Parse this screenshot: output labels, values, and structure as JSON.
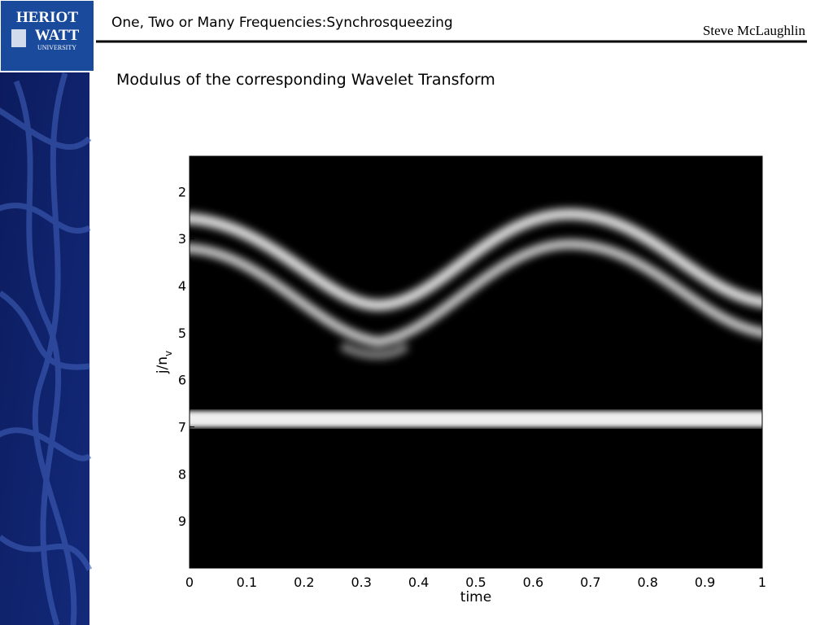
{
  "logo": {
    "line1": "HERIOT",
    "line2": "WATT",
    "line3": "UNIVERSITY"
  },
  "header": {
    "title": "One, Two or Many Frequencies:Synchrosqueezing",
    "author": "Steve McLaughlin"
  },
  "subtitle": "Modulus of the corresponding Wavelet Transform",
  "chart_data": {
    "type": "heatmap",
    "x_label": "time",
    "y_label": {
      "main": "j/n",
      "sub": "v"
    },
    "xlim": [
      0,
      1
    ],
    "xticks": [
      0,
      0.1,
      0.2,
      0.3,
      0.4,
      0.5,
      0.6,
      0.7,
      0.8,
      0.9,
      1
    ],
    "ylim": [
      1.25,
      10
    ],
    "y_inverted": true,
    "yticks": [
      2,
      3,
      4,
      5,
      6,
      7,
      8,
      9
    ]
  }
}
